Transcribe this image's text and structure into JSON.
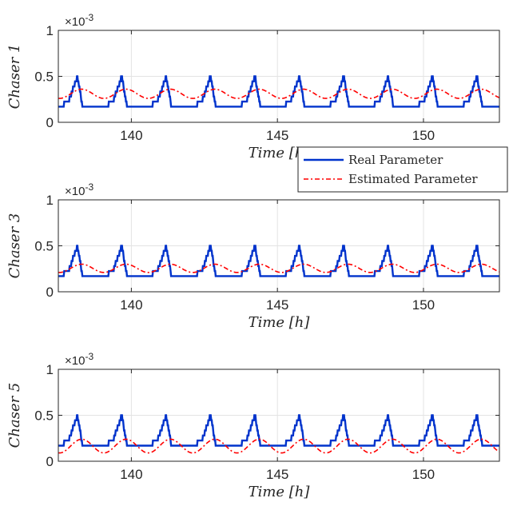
{
  "legend": {
    "entries": [
      {
        "label": "Real Parameter",
        "color": "#0033cc",
        "style": "solid"
      },
      {
        "label": "Estimated Parameter",
        "color": "#ff0000",
        "style": "dashdot"
      }
    ]
  },
  "chart_data": [
    {
      "type": "line",
      "ylabel": "Chaser 1",
      "xlabel": "Time [h]",
      "exponent_label": "×10^-3",
      "xlim": [
        137.5,
        152.6
      ],
      "ylim": [
        0,
        1
      ],
      "xticks": [
        140,
        145,
        150
      ],
      "yticks": [
        0,
        0.5,
        1
      ],
      "ytick_labels": [
        "0",
        "0.5",
        "1"
      ],
      "grid": true,
      "period_h": 1.52,
      "series": [
        {
          "name": "Real Parameter",
          "peak": 0.5,
          "trough": 0.17,
          "color": "#0033cc"
        },
        {
          "name": "Estimated Parameter",
          "peak": 0.36,
          "trough": 0.26,
          "color": "#ff0000"
        }
      ]
    },
    {
      "type": "line",
      "ylabel": "Chaser 3",
      "xlabel": "Time [h]",
      "exponent_label": "×10^-3",
      "xlim": [
        137.5,
        152.6
      ],
      "ylim": [
        0,
        1
      ],
      "xticks": [
        140,
        145,
        150
      ],
      "yticks": [
        0,
        0.5,
        1
      ],
      "ytick_labels": [
        "0",
        "0.5",
        "1"
      ],
      "grid": true,
      "period_h": 1.52,
      "series": [
        {
          "name": "Real Parameter",
          "peak": 0.5,
          "trough": 0.17,
          "color": "#0033cc"
        },
        {
          "name": "Estimated Parameter",
          "peak": 0.3,
          "trough": 0.21,
          "color": "#ff0000"
        }
      ]
    },
    {
      "type": "line",
      "ylabel": "Chaser 5",
      "xlabel": "Time [h]",
      "exponent_label": "×10^-3",
      "xlim": [
        137.5,
        152.6
      ],
      "ylim": [
        0,
        1
      ],
      "xticks": [
        140,
        145,
        150
      ],
      "yticks": [
        0,
        0.5,
        1
      ],
      "ytick_labels": [
        "0",
        "0.5",
        "1"
      ],
      "grid": true,
      "period_h": 1.52,
      "series": [
        {
          "name": "Real Parameter",
          "peak": 0.5,
          "trough": 0.17,
          "color": "#0033cc"
        },
        {
          "name": "Estimated Parameter",
          "peak": 0.24,
          "trough": 0.09,
          "color": "#ff0000"
        }
      ]
    }
  ]
}
